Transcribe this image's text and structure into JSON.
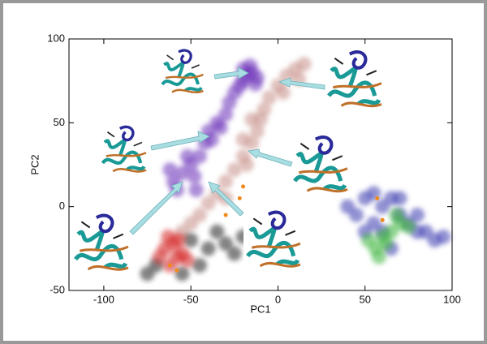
{
  "chart_data": {
    "type": "scatter",
    "x_label": "PC1",
    "y_label": "PC2",
    "xlim": [
      -120,
      100
    ],
    "ylim": [
      -50,
      100
    ],
    "xticks": [
      -100,
      -50,
      0,
      50,
      100
    ],
    "yticks": [
      -50,
      0,
      50,
      100
    ],
    "series": [
      {
        "color": "#c79088",
        "x": [
          -50,
          -45,
          -40,
          -35,
          -30,
          -25,
          -20,
          -15,
          -12,
          -10,
          -8,
          -5,
          0,
          5,
          10,
          15,
          -20,
          -15,
          -30,
          -55,
          -18,
          3,
          12
        ],
        "values": [
          -10,
          -5,
          2,
          8,
          15,
          22,
          30,
          38,
          45,
          52,
          58,
          65,
          72,
          78,
          82,
          85,
          40,
          52,
          5,
          -15,
          25,
          68,
          76
        ]
      },
      {
        "color": "#6a30b8",
        "x": [
          -60,
          -55,
          -50,
          -58,
          -48,
          -45,
          -42,
          -40,
          -35,
          -30,
          -28,
          -25,
          -22,
          -20,
          -18,
          -15,
          -12,
          -16,
          -20,
          -13,
          -52,
          -62,
          -47,
          -38,
          -33
        ],
        "values": [
          15,
          20,
          25,
          10,
          18,
          30,
          38,
          45,
          50,
          55,
          62,
          68,
          72,
          75,
          78,
          80,
          77,
          84,
          82,
          73,
          30,
          22,
          10,
          40,
          47
        ]
      },
      {
        "color": "#222222",
        "x": [
          -70,
          -50,
          -40,
          -30,
          -25,
          -45,
          -75,
          -35,
          -55,
          -20
        ],
        "values": [
          -35,
          -20,
          -25,
          -22,
          -28,
          -35,
          -40,
          -15,
          -40,
          -18
        ]
      },
      {
        "color": "#d42020",
        "x": [
          -65,
          -60,
          -58,
          -62,
          -55,
          -68,
          -57,
          -63,
          -52
        ],
        "values": [
          -25,
          -22,
          -30,
          -35,
          -28,
          -30,
          -20,
          -18,
          -32
        ]
      },
      {
        "color": "#3838b0",
        "x": [
          40,
          45,
          50,
          55,
          60,
          65,
          70,
          75,
          80,
          85,
          90,
          60,
          70,
          50,
          65,
          80,
          55,
          95
        ],
        "values": [
          0,
          -5,
          5,
          -10,
          0,
          5,
          -5,
          -10,
          -15,
          -15,
          -20,
          -15,
          5,
          -15,
          -25,
          -5,
          8,
          -18
        ]
      },
      {
        "color": "#3cb43c",
        "x": [
          52,
          56,
          60,
          58,
          65,
          70,
          75,
          68,
          62
        ],
        "values": [
          -20,
          -25,
          -18,
          -30,
          -15,
          -10,
          -12,
          -5,
          -22
        ]
      },
      {
        "color": "#f08a1c",
        "x": [
          -20,
          -22,
          -30,
          -62,
          -58,
          57,
          60
        ],
        "values": [
          12,
          5,
          -5,
          -35,
          -38,
          5,
          -8
        ]
      }
    ]
  }
}
